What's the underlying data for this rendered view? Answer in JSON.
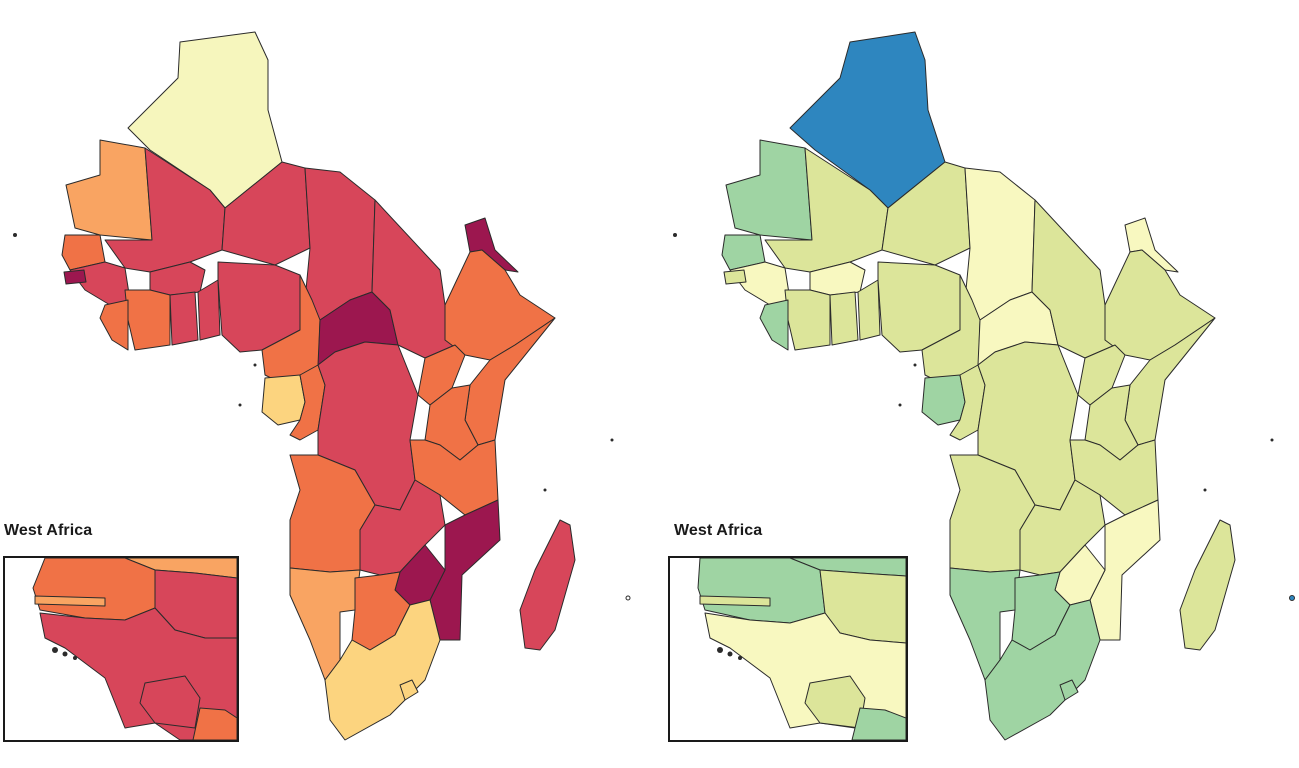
{
  "inset": {
    "title": "West Africa"
  },
  "palettes": {
    "left": {
      "c1": "#f6f6bd",
      "c2": "#fcd47f",
      "c3": "#f9a462",
      "c4": "#f07246",
      "c5": "#d7465a",
      "c6": "#9c174f",
      "water": "#ffffff"
    },
    "right": {
      "c1": "#2e86bf",
      "c2": "#9fd4a3",
      "c3": "#dce59a",
      "c4": "#f8f8c0",
      "water": "#ffffff"
    }
  }
}
